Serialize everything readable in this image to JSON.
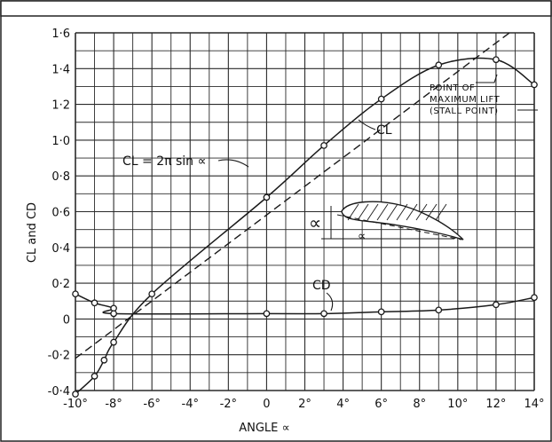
{
  "chart_data": {
    "type": "line",
    "xlabel": "ANGLE ∝",
    "ylabel": "CL and CD",
    "xlim": [
      -10,
      14
    ],
    "ylim": [
      -0.4,
      1.6
    ],
    "grid": true,
    "x_tick_labels": [
      "-10°",
      "-8°",
      "-6°",
      "-4°",
      "-2°",
      "0",
      "2°",
      "4°",
      "6°",
      "8°",
      "10°",
      "12°",
      "14°"
    ],
    "y_tick_labels": [
      "-0·4",
      "-0·2",
      "0",
      "0·2",
      "0·4",
      "0·6",
      "0·8",
      "1·0",
      "1·2",
      "1·4",
      "1·6"
    ],
    "series": [
      {
        "name": "CL",
        "style": "solid",
        "markers": true,
        "x": [
          -10,
          -9,
          -8.5,
          -8,
          -6,
          0,
          3,
          6,
          9,
          12,
          14
        ],
        "y": [
          -0.42,
          -0.32,
          -0.23,
          -0.13,
          0.14,
          0.68,
          0.97,
          1.23,
          1.42,
          1.45,
          1.31
        ]
      },
      {
        "name": "CL = 2π sin ∝",
        "style": "dashed",
        "markers": false,
        "x": [
          -10,
          12.7
        ],
        "y": [
          -0.22,
          1.6
        ]
      },
      {
        "name": "CD",
        "style": "solid",
        "markers": true,
        "x": [
          -10,
          -9,
          -8,
          -8,
          0,
          3,
          6,
          9,
          12,
          14
        ],
        "y": [
          0.14,
          0.09,
          0.06,
          0.03,
          0.03,
          0.03,
          0.04,
          0.05,
          0.08,
          0.12
        ]
      }
    ],
    "annotations": {
      "stall_text": [
        "POINT OF",
        "MAXIMUM LIFT",
        "(STALL POINT)"
      ],
      "formula": "CL = 2π sin ∝",
      "cl_label": "CL",
      "cd_label": "CD",
      "alpha_symbol": "∝"
    }
  },
  "colors": {
    "ink": "#1a1a1a",
    "paper": "#ffffff",
    "grid": "#2a2a2a"
  }
}
